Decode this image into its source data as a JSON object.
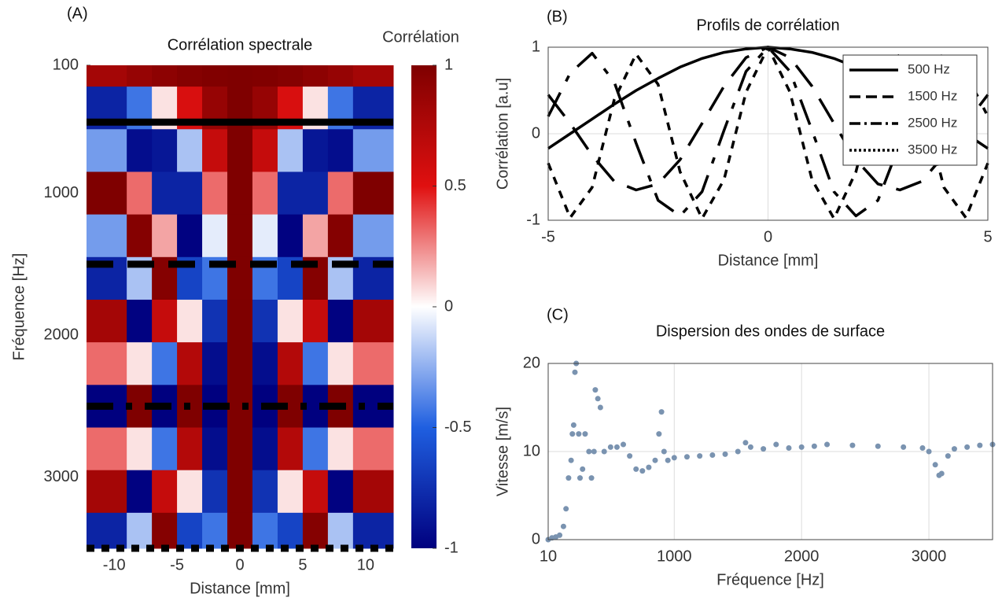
{
  "chart_data": [
    {
      "type": "heatmap",
      "panel": "(A)",
      "title": "Corrélation spectrale",
      "xlabel": "Distance [mm]",
      "ylabel": "Fréquence [Hz]",
      "x": [
        -10,
        -8,
        -6,
        -4,
        -2,
        0,
        2,
        4,
        6,
        8,
        10
      ],
      "y": [
        100,
        400,
        700,
        1000,
        1300,
        1600,
        1900,
        2200,
        2500,
        2800,
        3100,
        3400
      ],
      "z": [
        [
          0.81,
          0.88,
          0.93,
          0.97,
          0.99,
          1,
          0.99,
          0.97,
          0.93,
          0.88,
          0.81
        ],
        [
          -0.81,
          -0.43,
          0.06,
          0.54,
          0.88,
          1,
          0.88,
          0.54,
          0.06,
          -0.43,
          -0.81
        ],
        [
          -0.31,
          -0.93,
          -0.88,
          -0.19,
          0.64,
          1,
          0.64,
          -0.19,
          -0.88,
          -0.93,
          -0.31
        ],
        [
          1,
          0.31,
          -0.81,
          -0.81,
          0.31,
          1,
          0.31,
          -0.81,
          -0.81,
          0.31,
          1
        ],
        [
          -0.31,
          0.97,
          0.19,
          -0.99,
          -0.06,
          1,
          -0.06,
          -0.99,
          0.19,
          0.97,
          -0.31
        ],
        [
          -0.81,
          -0.19,
          0.97,
          -0.64,
          -0.43,
          1,
          -0.43,
          -0.64,
          0.97,
          -0.19,
          -0.81
        ],
        [
          0.81,
          -0.99,
          0.64,
          0.06,
          -0.73,
          1,
          -0.73,
          0.06,
          0.64,
          -0.99,
          0.81
        ],
        [
          0.31,
          0.06,
          -0.43,
          0.73,
          -0.93,
          1,
          -0.93,
          0.73,
          -0.43,
          0.06,
          0.31
        ],
        [
          -1,
          1,
          -1,
          1,
          -1,
          1,
          -1,
          1,
          -1,
          1,
          -1
        ],
        [
          0.31,
          0.06,
          -0.43,
          0.73,
          -0.93,
          1,
          -0.93,
          0.73,
          -0.43,
          0.06,
          0.31
        ],
        [
          0.81,
          -0.99,
          0.64,
          0.06,
          -0.73,
          1,
          -0.73,
          0.06,
          0.64,
          -0.99,
          0.81
        ],
        [
          -0.81,
          -0.19,
          0.97,
          -0.64,
          -0.43,
          1,
          -0.43,
          -0.64,
          0.97,
          -0.19,
          -0.81
        ]
      ],
      "xlim": [
        -12.2,
        12.2
      ],
      "xticks": [
        -10,
        -5,
        0,
        5,
        10
      ],
      "ylim": [
        100,
        3500
      ],
      "yticks": [
        100,
        1000,
        2000,
        3000
      ],
      "y_reversed": true,
      "colorbar_label": "Corrélation",
      "zlim": [
        -1,
        1
      ],
      "zticks": [
        -1,
        -0.5,
        0,
        0.5,
        1
      ],
      "colormap": [
        "#00007f",
        "#1f5fe0",
        "#ffffff",
        "#e01010",
        "#7f0000"
      ],
      "hline_color": "#000000",
      "hlines": [
        {
          "value": 500,
          "dash": "solid"
        },
        {
          "value": 1500,
          "dash": "dashed"
        },
        {
          "value": 2500,
          "dash": "dashdot"
        },
        {
          "value": 3500,
          "dash": "dotted"
        }
      ]
    },
    {
      "type": "line",
      "panel": "(B)",
      "title": "Profils de corrélation",
      "xlabel": "Distance [mm]",
      "ylabel": "Corrélation [a.u]",
      "x": [
        -5,
        -4.5,
        -4,
        -3.5,
        -3,
        -2.5,
        -2,
        -1.5,
        -1,
        -0.5,
        0,
        0.5,
        1,
        1.5,
        2,
        2.5,
        3,
        3.5,
        4,
        4.5,
        5
      ],
      "series": [
        {
          "name": "500 Hz",
          "color": "#000000",
          "dash": "solid",
          "values": [
            -0.17,
            0,
            0.17,
            0.34,
            0.5,
            0.64,
            0.77,
            0.87,
            0.94,
            0.98,
            1,
            0.98,
            0.94,
            0.87,
            0.77,
            0.64,
            0.5,
            0.34,
            0.17,
            0,
            -0.17
          ]
        },
        {
          "name": "1500 Hz",
          "color": "#000000",
          "dash": "dashed",
          "values": [
            0.45,
            0.12,
            -0.25,
            -0.55,
            -0.65,
            -0.58,
            -0.3,
            0.12,
            0.55,
            0.88,
            1,
            0.88,
            0.55,
            0.12,
            -0.3,
            -0.58,
            -0.65,
            -0.55,
            -0.25,
            0.12,
            0.45
          ]
        },
        {
          "name": "2500 Hz",
          "color": "#000000",
          "dash": "dashdot",
          "values": [
            0.2,
            0.7,
            0.93,
            0.6,
            -0.11,
            -0.77,
            -0.95,
            -0.67,
            0.04,
            0.72,
            1,
            0.72,
            0.04,
            -0.67,
            -0.95,
            -0.77,
            -0.11,
            0.6,
            0.93,
            0.7,
            0.2
          ]
        },
        {
          "name": "3500 Hz",
          "color": "#000000",
          "dash": "dotted",
          "values": [
            -0.34,
            -0.97,
            -0.62,
            0.39,
            0.92,
            0.57,
            -0.44,
            -0.98,
            -0.53,
            0.48,
            1,
            0.48,
            -0.53,
            -0.98,
            -0.44,
            0.57,
            0.92,
            0.39,
            -0.62,
            -0.97,
            -0.34
          ]
        }
      ],
      "xlim": [
        -5,
        5
      ],
      "xticks": [
        -5,
        0,
        5
      ],
      "ylim": [
        -1,
        1
      ],
      "yticks": [
        -1,
        0,
        1
      ],
      "grid": true,
      "legend": "top-right"
    },
    {
      "type": "scatter",
      "panel": "(C)",
      "title": "Dispersion des ondes de surface",
      "xlabel": "Fréquence [Hz]",
      "ylabel": "Vitesse [m/s]",
      "color": "#7a93b0",
      "x": [
        10,
        40,
        70,
        100,
        130,
        150,
        170,
        190,
        200,
        210,
        220,
        230,
        250,
        260,
        280,
        300,
        330,
        350,
        370,
        380,
        400,
        420,
        450,
        500,
        550,
        600,
        650,
        700,
        750,
        800,
        850,
        880,
        900,
        920,
        950,
        1000,
        1100,
        1200,
        1300,
        1400,
        1500,
        1560,
        1600,
        1700,
        1800,
        1900,
        2000,
        2100,
        2200,
        2400,
        2600,
        2800,
        2950,
        3000,
        3050,
        3080,
        3100,
        3150,
        3200,
        3300,
        3400,
        3500
      ],
      "values": [
        0,
        0.2,
        0.3,
        0.5,
        1.5,
        3.5,
        7,
        9,
        12,
        13,
        19,
        20,
        12,
        7,
        8,
        12,
        10,
        7,
        10,
        17,
        16,
        15,
        10,
        10.5,
        10.5,
        10.8,
        9.5,
        8,
        7.8,
        8.2,
        9,
        12,
        14.5,
        10,
        9,
        9.3,
        9.4,
        9.5,
        9.6,
        9.7,
        10,
        11,
        10.5,
        10.3,
        10.8,
        10.4,
        10.5,
        10.6,
        10.8,
        10.7,
        10.6,
        10.5,
        10.4,
        10,
        8.5,
        7.3,
        7.5,
        9.5,
        10.3,
        10.5,
        10.7,
        10.8
      ],
      "xlim": [
        10,
        3500
      ],
      "xticks": [
        10,
        1000,
        2000,
        3000
      ],
      "ylim": [
        0,
        20
      ],
      "yticks": [
        0,
        10,
        20
      ],
      "grid": true
    }
  ]
}
